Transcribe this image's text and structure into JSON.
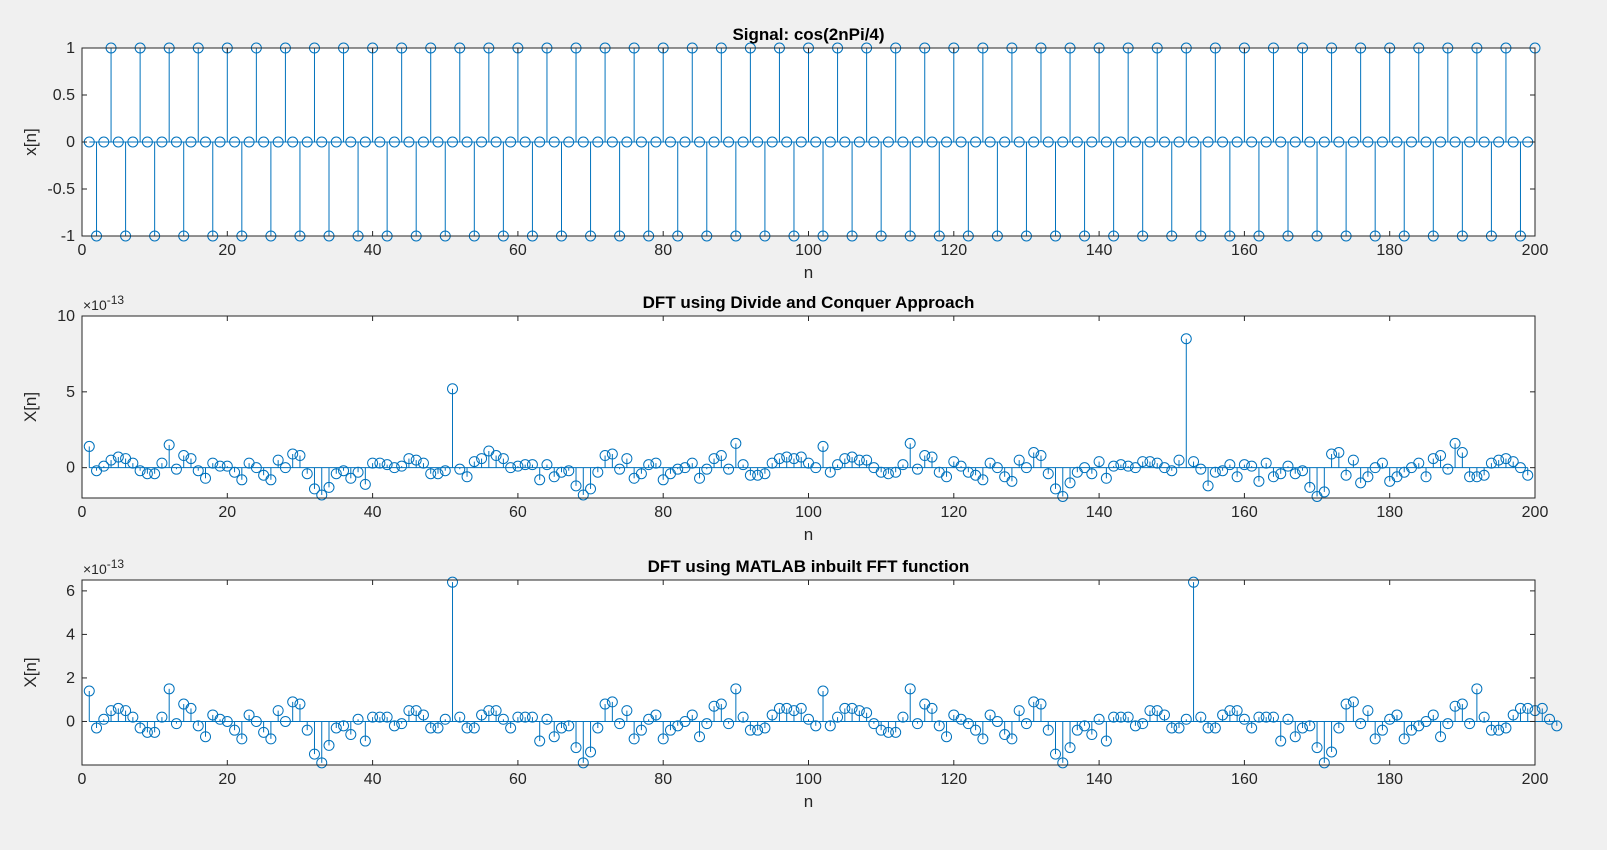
{
  "figure": {
    "background": "#f0f0f0",
    "axes_background": "#ffffff",
    "stem_color": "#0072bd"
  },
  "chart_data": [
    {
      "type": "stem",
      "title": "Signal: cos(2nPi/4)",
      "xlabel": "n",
      "ylabel": "x[n]",
      "xlim": [
        0,
        200
      ],
      "ylim": [
        -1,
        1
      ],
      "xticks": [
        "0",
        "20",
        "40",
        "60",
        "80",
        "100",
        "120",
        "140",
        "160",
        "180",
        "200"
      ],
      "yticks": [
        "-1",
        "-0.5",
        "0",
        "0.5",
        "1"
      ],
      "ytick_values": [
        -1,
        -0.5,
        0,
        0.5,
        1
      ],
      "exponent": "",
      "series": [
        {
          "formula": "cos(2nPi/4)",
          "n_range": [
            1,
            200
          ]
        }
      ]
    },
    {
      "type": "stem",
      "title": "DFT using Divide and Conquer Approach",
      "xlabel": "n",
      "ylabel": "X[n]",
      "xlim": [
        0,
        200
      ],
      "ylim": [
        -2,
        10
      ],
      "xticks": [
        "0",
        "20",
        "40",
        "60",
        "80",
        "100",
        "120",
        "140",
        "160",
        "180",
        "200"
      ],
      "yticks": [
        "0",
        "5",
        "10"
      ],
      "ytick_values": [
        0,
        5,
        10
      ],
      "exponent": "-13",
      "series": [
        {
          "x_start": 1,
          "values": [
            1.4,
            -0.2,
            0.1,
            0.5,
            0.7,
            0.6,
            0.3,
            -0.2,
            -0.4,
            -0.4,
            0.3,
            1.5,
            -0.1,
            0.8,
            0.6,
            -0.2,
            -0.7,
            0.3,
            0.1,
            0.1,
            -0.3,
            -0.8,
            0.3,
            0,
            -0.5,
            -0.8,
            0.5,
            0,
            0.9,
            0.8,
            -0.4,
            -1.4,
            -1.8,
            -1.3,
            -0.4,
            -0.2,
            -0.7,
            -0.3,
            -1.1,
            0.3,
            0.3,
            0.2,
            0,
            0.1,
            0.6,
            0.5,
            0.3,
            -0.4,
            -0.4,
            -0.2,
            5.2,
            -0.1,
            -0.6,
            0.4,
            0.6,
            1.1,
            0.8,
            0.6,
            0,
            0.1,
            0.2,
            0.2,
            -0.8,
            0.2,
            -0.6,
            -0.3,
            -0.2,
            -1.2,
            -1.8,
            -1.4,
            -0.3,
            0.8,
            0.9,
            -0.1,
            0.6,
            -0.7,
            -0.4,
            0.2,
            0.3,
            -0.8,
            -0.4,
            -0.1,
            0,
            0.3,
            -0.7,
            -0.1,
            0.6,
            0.8,
            -0.1,
            1.6,
            0.2,
            -0.5,
            -0.5,
            -0.4,
            0.3,
            0.6,
            0.7,
            0.6,
            0.7,
            0.3,
            0,
            1.4,
            -0.3,
            0.2,
            0.6,
            0.7,
            0.5,
            0.5,
            0,
            -0.3,
            -0.4,
            -0.3,
            0.2,
            1.6,
            -0.1,
            0.8,
            0.7,
            -0.3,
            -0.6,
            0.4,
            0.1,
            -0.3,
            -0.5,
            -0.8,
            0.3,
            0,
            -0.6,
            -0.9,
            0.5,
            0,
            1,
            0.8,
            -0.4,
            -1.4,
            -1.9,
            -1,
            -0.3,
            0,
            -0.4,
            0.4,
            -0.7,
            0.1,
            0.2,
            0.1,
            0,
            0.4,
            0.4,
            0.3,
            0,
            -0.2,
            0.5,
            8.5,
            0.4,
            -0.1,
            -1.2,
            -0.3,
            -0.2,
            0.2,
            -0.6,
            0.2,
            0.1,
            -0.9,
            0.3,
            -0.6,
            -0.4,
            0.1,
            -0.4,
            -0.2,
            -1.3,
            -1.9,
            -1.6,
            0.9,
            1,
            -0.5,
            0.5,
            -1,
            -0.6,
            0,
            0.3,
            -0.9,
            -0.6,
            -0.3,
            0,
            0.3,
            -0.6,
            0.6,
            0.8,
            -0.1,
            1.6,
            1,
            -0.6,
            -0.6,
            -0.5,
            0.3,
            0.5,
            0.6,
            0.4,
            0,
            -0.5
          ]
        }
      ]
    },
    {
      "type": "stem",
      "title": "DFT using MATLAB inbuilt FFT function",
      "xlabel": "n",
      "ylabel": "X[n]",
      "xlim": [
        0,
        200
      ],
      "ylim": [
        -2,
        6.5
      ],
      "xticks": [
        "0",
        "20",
        "40",
        "60",
        "80",
        "100",
        "120",
        "140",
        "160",
        "180",
        "200"
      ],
      "yticks": [
        "0",
        "2",
        "4",
        "6"
      ],
      "ytick_values": [
        0,
        2,
        4,
        6
      ],
      "exponent": "-13",
      "series": [
        {
          "x_start": 1,
          "values": [
            1.4,
            -0.3,
            0.1,
            0.5,
            0.6,
            0.5,
            0.2,
            -0.3,
            -0.5,
            -0.5,
            0.2,
            1.5,
            -0.1,
            0.8,
            0.6,
            -0.2,
            -0.7,
            0.3,
            0.1,
            0,
            -0.4,
            -0.8,
            0.3,
            0,
            -0.5,
            -0.8,
            0.5,
            0,
            0.9,
            0.8,
            -0.4,
            -1.5,
            -1.9,
            -1.1,
            -0.3,
            -0.2,
            -0.6,
            0.1,
            -0.9,
            0.2,
            0.2,
            0.2,
            -0.2,
            -0.1,
            0.5,
            0.5,
            0.3,
            -0.3,
            -0.3,
            0.1,
            6.4,
            0.2,
            -0.3,
            -0.3,
            0.3,
            0.5,
            0.5,
            0.1,
            -0.3,
            0.2,
            0.2,
            0.2,
            -0.9,
            0.1,
            -0.7,
            -0.3,
            -0.2,
            -1.2,
            -1.9,
            -1.4,
            -0.3,
            0.8,
            0.9,
            -0.1,
            0.5,
            -0.8,
            -0.4,
            0.1,
            0.3,
            -0.8,
            -0.4,
            -0.2,
            0,
            0.3,
            -0.7,
            -0.1,
            0.7,
            0.8,
            -0.1,
            1.5,
            0.2,
            -0.4,
            -0.4,
            -0.3,
            0.3,
            0.6,
            0.6,
            0.5,
            0.6,
            0.1,
            -0.2,
            1.4,
            -0.2,
            0.2,
            0.6,
            0.6,
            0.5,
            0.4,
            -0.1,
            -0.4,
            -0.5,
            -0.5,
            0.2,
            1.5,
            -0.1,
            0.8,
            0.6,
            -0.2,
            -0.7,
            0.3,
            0.1,
            -0.1,
            -0.4,
            -0.8,
            0.3,
            0,
            -0.6,
            -0.8,
            0.5,
            -0.1,
            0.9,
            0.8,
            -0.4,
            -1.5,
            -1.9,
            -1.2,
            -0.4,
            -0.2,
            -0.6,
            0.1,
            -0.9,
            0.2,
            0.2,
            0.2,
            -0.2,
            -0.1,
            0.5,
            0.5,
            0.3,
            -0.3,
            -0.3,
            0.1,
            6.4,
            0.2,
            -0.3,
            -0.3,
            0.3,
            0.5,
            0.5,
            0.1,
            -0.3,
            0.2,
            0.2,
            0.2,
            -0.9,
            0.1,
            -0.7,
            -0.3,
            -0.2,
            -1.2,
            -1.9,
            -1.4,
            -0.3,
            0.8,
            0.9,
            -0.1,
            0.5,
            -0.8,
            -0.4,
            0.1,
            0.3,
            -0.8,
            -0.4,
            -0.2,
            0,
            0.3,
            -0.7,
            -0.1,
            0.7,
            0.8,
            -0.1,
            1.5,
            0.2,
            -0.4,
            -0.4,
            -0.3,
            0.3,
            0.6,
            0.6,
            0.5,
            0.6,
            0.1,
            -0.2
          ]
        }
      ]
    }
  ]
}
